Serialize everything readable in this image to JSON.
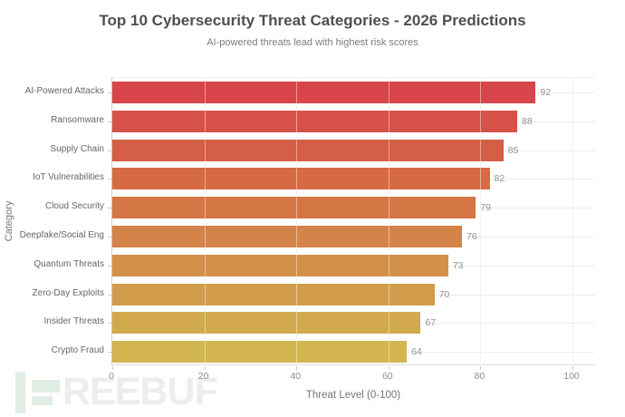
{
  "chart_data": {
    "type": "bar",
    "orientation": "horizontal",
    "title": "Top 10 Cybersecurity Threat Categories - 2026 Predictions",
    "subtitle": "AI-powered threats lead with highest risk scores",
    "xlabel": "Threat Level (0-100)",
    "ylabel": "Category",
    "categories": [
      "AI-Powered Attacks",
      "Ransomware",
      "Supply Chain",
      "IoT Vulnerabilities",
      "Cloud Security",
      "Deepfake/Social Eng",
      "Quantum Threats",
      "Zero-Day Exploits",
      "Insider Threats",
      "Crypto Fraud"
    ],
    "values": [
      92,
      88,
      85,
      82,
      79,
      76,
      73,
      70,
      67,
      64
    ],
    "bar_colors": [
      "#d8454a",
      "#d65249",
      "#d55e46",
      "#d66a45",
      "#d57645",
      "#d48349",
      "#d39049",
      "#d19d4d",
      "#d2a94d",
      "#d3b54f"
    ],
    "x_ticks": [
      0,
      20,
      40,
      60,
      80,
      100
    ],
    "xlim": [
      0,
      105
    ],
    "grid": true,
    "value_labels": true,
    "legend": false
  },
  "watermark": {
    "text": "REEBUF",
    "icon_color": "#e0ede5",
    "text_color": "#ededed"
  },
  "colors": {
    "background": "#ffffff",
    "title": "#4f4f4f",
    "subtitle": "#7c7c7c",
    "category_label": "#666666",
    "tick_label": "#8c8c8c",
    "value_label": "#919191",
    "axis_line": "#c9c9c9",
    "gridline": "#e9e9e9"
  }
}
